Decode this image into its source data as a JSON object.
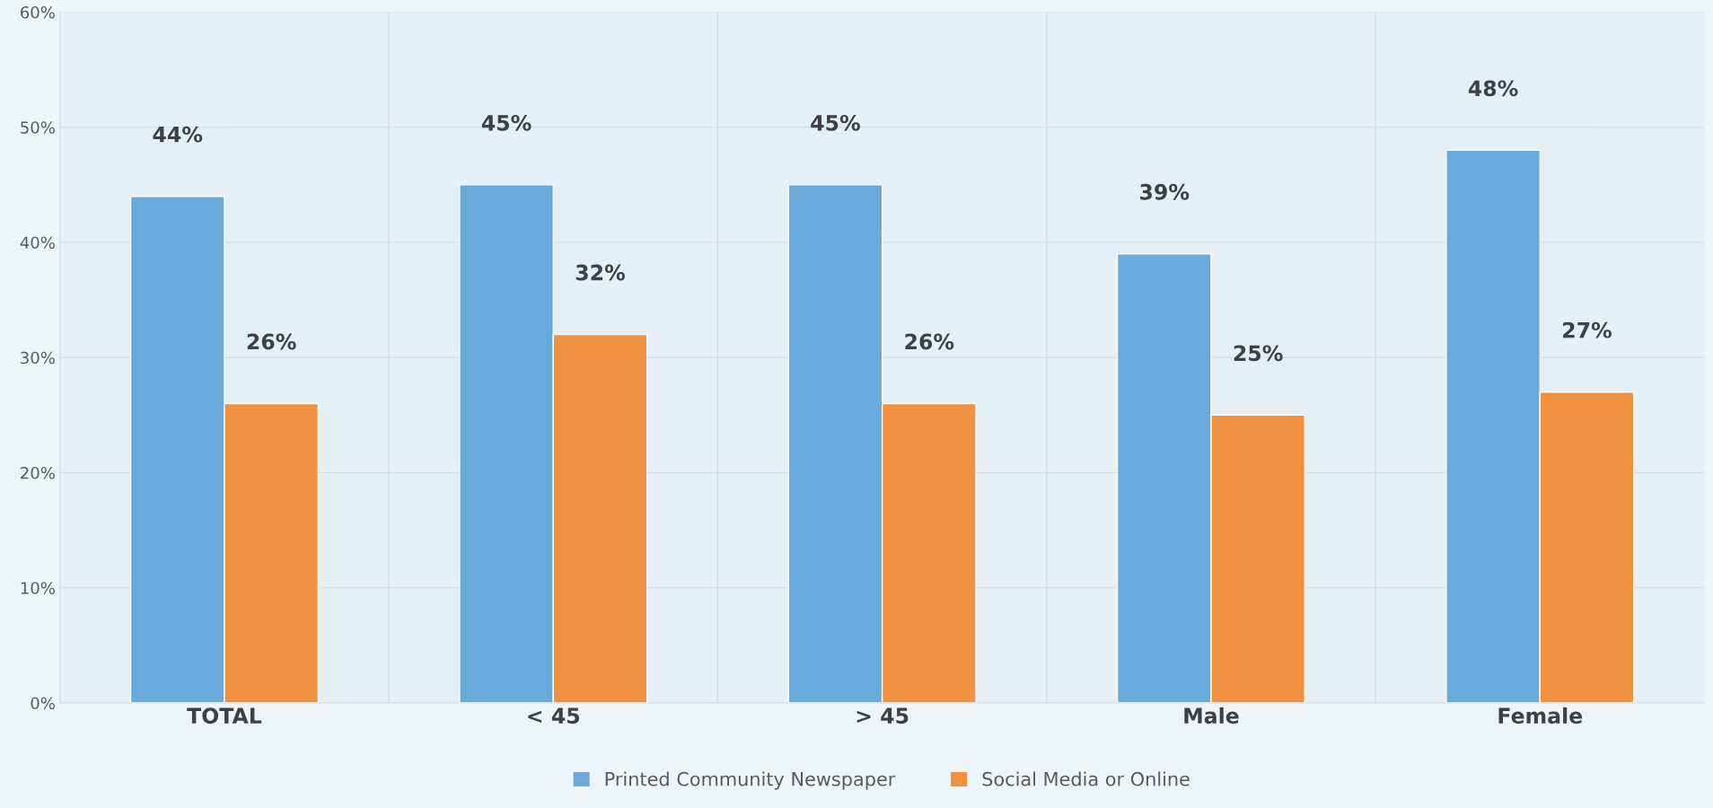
{
  "chart_data": {
    "type": "bar",
    "categories": [
      "TOTAL",
      "< 45",
      "> 45",
      "Male",
      "Female"
    ],
    "series": [
      {
        "name": "Printed Community Newspaper",
        "color": "#6aaadb",
        "values": [
          44,
          45,
          45,
          39,
          48
        ],
        "value_labels": [
          "44%",
          "45%",
          "45%",
          "39%",
          "48%"
        ]
      },
      {
        "name": "Social Media or Online",
        "color": "#f09140",
        "values": [
          26,
          32,
          26,
          25,
          27
        ],
        "value_labels": [
          "26%",
          "32%",
          "26%",
          "25%",
          "27%"
        ]
      }
    ],
    "ylim": [
      0,
      60
    ],
    "yticks": [
      {
        "value": 0,
        "label": "0%"
      },
      {
        "value": 10,
        "label": "10%"
      },
      {
        "value": 20,
        "label": "20%"
      },
      {
        "value": 30,
        "label": "30%"
      },
      {
        "value": 40,
        "label": "40%"
      },
      {
        "value": 50,
        "label": "50%"
      },
      {
        "value": 60,
        "label": "60%"
      }
    ],
    "grid": "y",
    "legend": "bottom"
  }
}
